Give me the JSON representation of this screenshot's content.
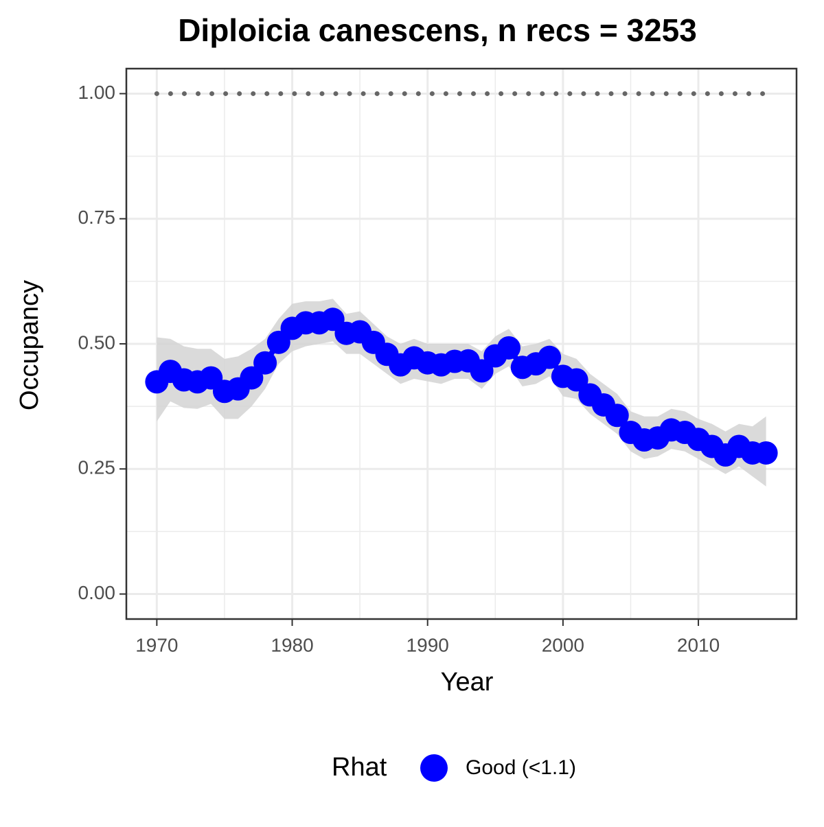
{
  "chart_data": {
    "type": "line",
    "title": "Diploicia canescens, n recs = 3253",
    "x_label": "Year",
    "y_label": "Occupancy",
    "legend_title": "Rhat",
    "x": [
      1970,
      1971,
      1972,
      1973,
      1974,
      1975,
      1976,
      1977,
      1978,
      1979,
      1980,
      1981,
      1982,
      1983,
      1984,
      1985,
      1986,
      1987,
      1988,
      1989,
      1990,
      1991,
      1992,
      1993,
      1994,
      1995,
      1996,
      1997,
      1998,
      1999,
      2000,
      2001,
      2002,
      2003,
      2004,
      2005,
      2006,
      2007,
      2008,
      2009,
      2010,
      2011,
      2012,
      2013,
      2014,
      2015
    ],
    "series": [
      {
        "name": "Good (<1.1)",
        "color": "#0000ff",
        "values": [
          0.424,
          0.445,
          0.428,
          0.424,
          0.432,
          0.405,
          0.41,
          0.432,
          0.462,
          0.503,
          0.531,
          0.542,
          0.542,
          0.549,
          0.521,
          0.524,
          0.503,
          0.479,
          0.458,
          0.472,
          0.462,
          0.458,
          0.465,
          0.466,
          0.446,
          0.476,
          0.492,
          0.453,
          0.46,
          0.473,
          0.435,
          0.428,
          0.398,
          0.378,
          0.357,
          0.323,
          0.308,
          0.312,
          0.328,
          0.323,
          0.309,
          0.295,
          0.278,
          0.295,
          0.282,
          0.282
        ],
        "upper": [
          0.513,
          0.51,
          0.495,
          0.49,
          0.49,
          0.47,
          0.475,
          0.49,
          0.51,
          0.55,
          0.58,
          0.585,
          0.585,
          0.59,
          0.56,
          0.565,
          0.54,
          0.515,
          0.5,
          0.51,
          0.5,
          0.5,
          0.5,
          0.5,
          0.485,
          0.515,
          0.53,
          0.495,
          0.5,
          0.51,
          0.48,
          0.47,
          0.44,
          0.42,
          0.4,
          0.365,
          0.355,
          0.355,
          0.37,
          0.365,
          0.35,
          0.34,
          0.325,
          0.34,
          0.335,
          0.355
        ],
        "lower": [
          0.345,
          0.385,
          0.372,
          0.37,
          0.38,
          0.35,
          0.35,
          0.375,
          0.41,
          0.46,
          0.485,
          0.495,
          0.5,
          0.505,
          0.48,
          0.48,
          0.46,
          0.44,
          0.42,
          0.43,
          0.425,
          0.42,
          0.43,
          0.43,
          0.41,
          0.44,
          0.455,
          0.415,
          0.42,
          0.435,
          0.395,
          0.39,
          0.36,
          0.34,
          0.32,
          0.285,
          0.27,
          0.275,
          0.29,
          0.285,
          0.27,
          0.255,
          0.24,
          0.255,
          0.235,
          0.215
        ],
        "band_color": "#d3d3d3"
      }
    ],
    "reference_value": 1,
    "reference_color": "#666666",
    "xlim": [
      1967.75,
      2017.25
    ],
    "xticks": [
      1970,
      1980,
      1990,
      2000,
      2010
    ],
    "ylim": [
      -0.05,
      1.05
    ],
    "yticks": [
      {
        "value": 0,
        "label": "0.00"
      },
      {
        "value": 0.25,
        "label": "0.25"
      },
      {
        "value": 0.5,
        "label": "0.50"
      },
      {
        "value": 0.75,
        "label": "0.75"
      },
      {
        "value": 1,
        "label": "1.00"
      }
    ],
    "grid": true,
    "minor_grid": true,
    "legend": "bottom"
  }
}
